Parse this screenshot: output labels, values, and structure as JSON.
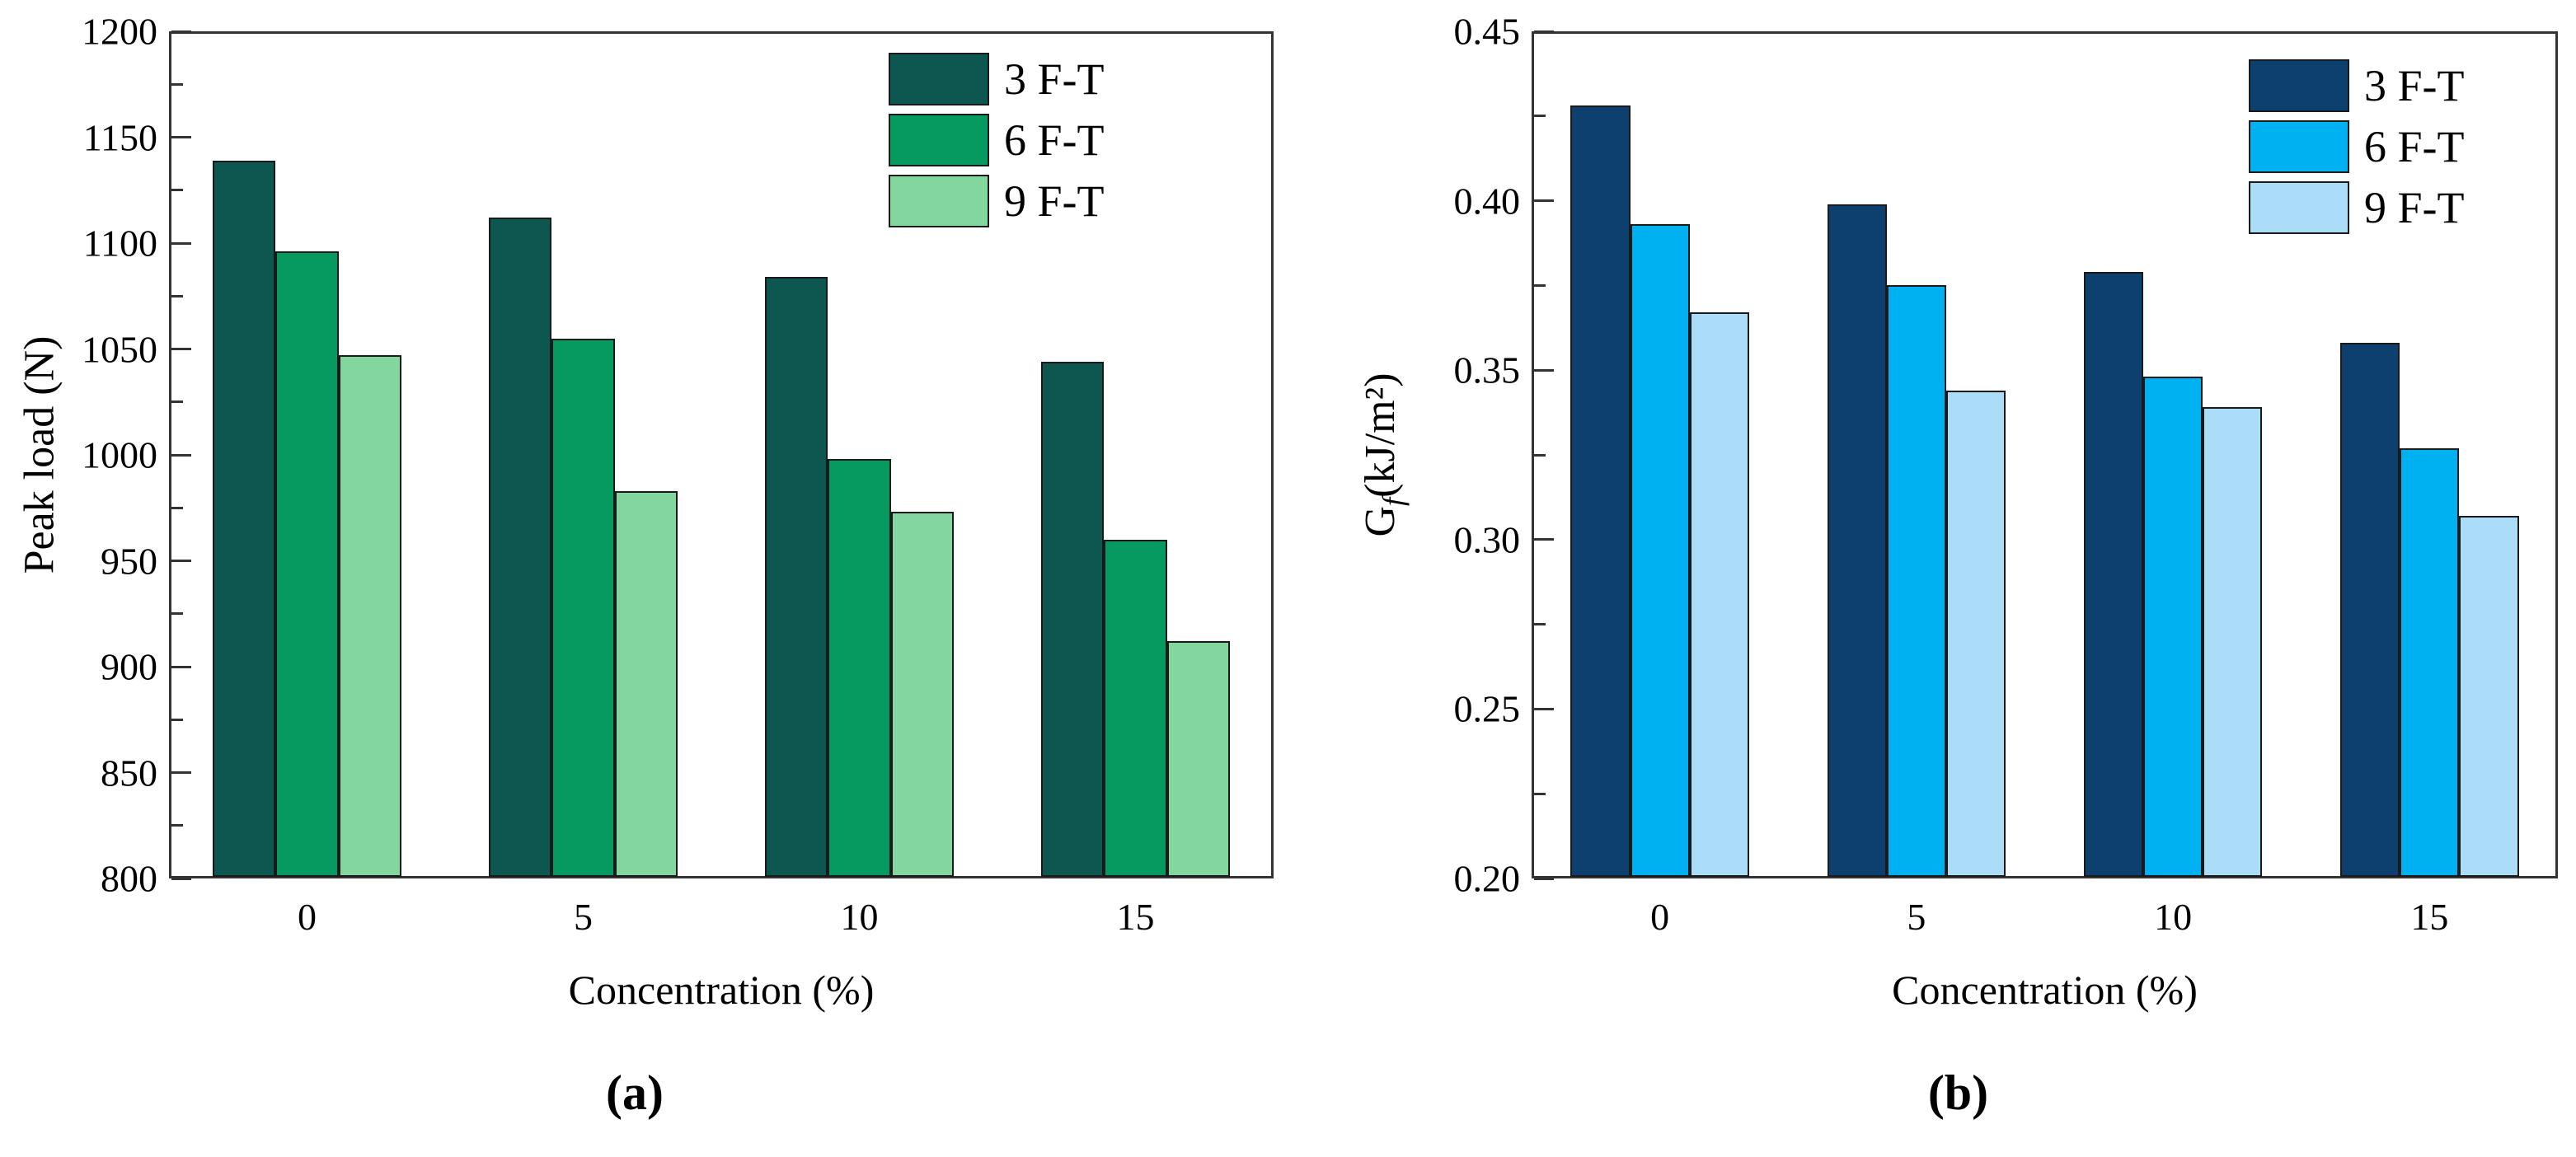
{
  "styles": {
    "background": "#ffffff",
    "axis_color": "#333333",
    "bar_outline": "#1a1a1a",
    "text_color": "#000000"
  },
  "chart_data": [
    {
      "type": "bar",
      "panel_label": "(a)",
      "title": "",
      "xlabel": "Concentration (%)",
      "ylabel": "Peak load (N)",
      "ylabel_parts": {
        "pre": "Peak load (N)",
        "sub": "",
        "post": ""
      },
      "ylim": [
        800,
        1200
      ],
      "ytick_major": 50,
      "ytick_minor": 25,
      "ytick_labels": [
        "1200",
        "1150",
        "1100",
        "1050",
        "1000",
        "950",
        "900",
        "850",
        "800"
      ],
      "categories": [
        "0",
        "5",
        "10",
        "15"
      ],
      "grid": false,
      "legend_position": "top-right",
      "series": [
        {
          "name": "3 F-T",
          "color": "#0e5751",
          "values": [
            1139,
            1112,
            1084,
            1044
          ]
        },
        {
          "name": "6 F-T",
          "color": "#079a60",
          "values": [
            1096,
            1055,
            998,
            960
          ]
        },
        {
          "name": "9 F-T",
          "color": "#82d69e",
          "values": [
            1047,
            983,
            973,
            912
          ]
        }
      ]
    },
    {
      "type": "bar",
      "panel_label": "(b)",
      "title": "",
      "xlabel": "Concentration (%)",
      "ylabel": "Gf(kJ/m²)",
      "ylabel_parts": {
        "pre": "G",
        "sub": "f",
        "post": "(kJ/m²)"
      },
      "ylim": [
        0.2,
        0.45
      ],
      "ytick_major": 0.05,
      "ytick_minor": 0.025,
      "ytick_labels": [
        "0.45",
        "0.40",
        "0.35",
        "0.30",
        "0.25",
        "0.20"
      ],
      "categories": [
        "0",
        "5",
        "10",
        "15"
      ],
      "grid": false,
      "legend_position": "top-right",
      "series": [
        {
          "name": "3 F-T",
          "color": "#0d406f",
          "values": [
            0.428,
            0.399,
            0.379,
            0.358
          ]
        },
        {
          "name": "6 F-T",
          "color": "#00b1f1",
          "values": [
            0.393,
            0.375,
            0.348,
            0.327
          ]
        },
        {
          "name": "9 F-T",
          "color": "#abddf8",
          "values": [
            0.367,
            0.344,
            0.339,
            0.307
          ]
        }
      ]
    }
  ]
}
